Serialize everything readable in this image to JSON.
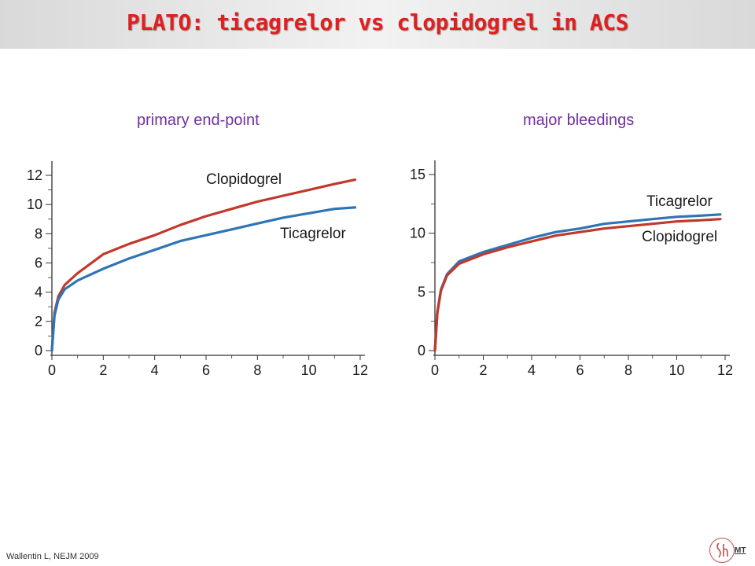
{
  "slide": {
    "title": "PLATO: ticagrelor vs clopidogrel in ACS",
    "citation": "Wallentin L, NEJM 2009",
    "logo_text": "MT",
    "logo_icon": "monogram-logo-icon",
    "accent_color": "#e02020",
    "subtitle_color": "#7030a0"
  },
  "chart_data": [
    {
      "type": "line",
      "title": "primary end-point",
      "xlabel": "",
      "ylabel": "",
      "xlim": [
        0,
        12
      ],
      "ylim": [
        0,
        12
      ],
      "x_ticks": [
        0,
        2,
        4,
        6,
        8,
        10,
        12
      ],
      "y_ticks": [
        0,
        2,
        4,
        6,
        8,
        10,
        12
      ],
      "grid": false,
      "series": [
        {
          "name": "Clopidogrel",
          "color": "#c0392b",
          "x": [
            0,
            0.1,
            0.25,
            0.5,
            1,
            2,
            3,
            4,
            5,
            6,
            7,
            8,
            9,
            10,
            11,
            11.8
          ],
          "y": [
            0,
            2.6,
            3.7,
            4.5,
            5.3,
            6.6,
            7.3,
            7.9,
            8.6,
            9.2,
            9.7,
            10.2,
            10.6,
            11.0,
            11.4,
            11.7
          ]
        },
        {
          "name": "Ticagrelor",
          "color": "#2e75b6",
          "x": [
            0,
            0.1,
            0.25,
            0.5,
            1,
            2,
            3,
            4,
            5,
            6,
            7,
            8,
            9,
            10,
            11,
            11.8
          ],
          "y": [
            0,
            2.4,
            3.5,
            4.2,
            4.8,
            5.6,
            6.3,
            6.9,
            7.5,
            7.9,
            8.3,
            8.7,
            9.1,
            9.4,
            9.7,
            9.8
          ]
        }
      ]
    },
    {
      "type": "line",
      "title": "major bleedings",
      "xlabel": "",
      "ylabel": "",
      "xlim": [
        0,
        12
      ],
      "ylim": [
        0,
        15
      ],
      "x_ticks": [
        0,
        2,
        4,
        6,
        8,
        10,
        12
      ],
      "y_ticks": [
        0,
        5,
        10,
        15
      ],
      "grid": false,
      "series": [
        {
          "name": "Ticagrelor",
          "color": "#2e75b6",
          "x": [
            0,
            0.1,
            0.25,
            0.5,
            1,
            2,
            3,
            4,
            5,
            6,
            7,
            8,
            9,
            10,
            11,
            11.8
          ],
          "y": [
            0,
            3.3,
            5.2,
            6.5,
            7.6,
            8.4,
            9.0,
            9.6,
            10.1,
            10.4,
            10.8,
            11.0,
            11.2,
            11.4,
            11.5,
            11.6
          ]
        },
        {
          "name": "Clopidogrel",
          "color": "#c0392b",
          "x": [
            0,
            0.1,
            0.25,
            0.5,
            1,
            2,
            3,
            4,
            5,
            6,
            7,
            8,
            9,
            10,
            11,
            11.8
          ],
          "y": [
            0,
            3.2,
            5.1,
            6.4,
            7.4,
            8.2,
            8.8,
            9.3,
            9.8,
            10.1,
            10.4,
            10.6,
            10.8,
            11.0,
            11.1,
            11.2
          ]
        }
      ]
    }
  ]
}
